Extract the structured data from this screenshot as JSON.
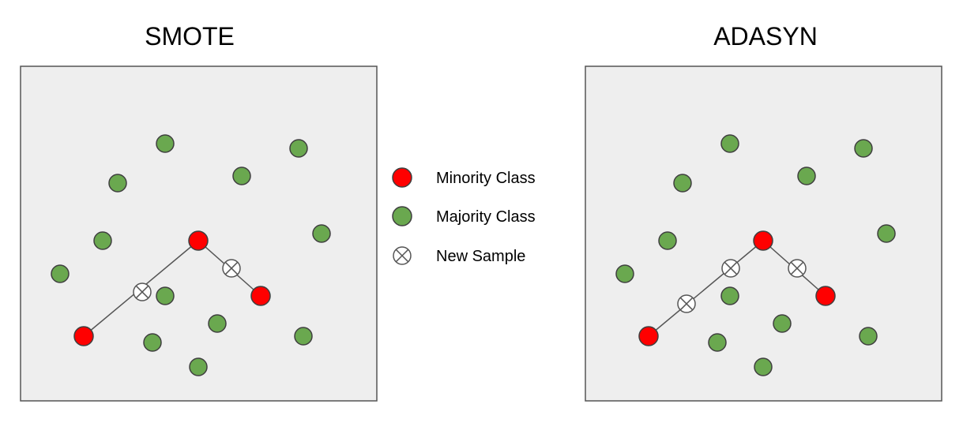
{
  "colors": {
    "minority": "#ff0000",
    "majority": "#6aa84f",
    "new_sample": "#ffffff",
    "panel": "#eeeeee"
  },
  "legend": {
    "items": [
      {
        "label": "Minority Class",
        "marker": "minority"
      },
      {
        "label": "Majority Class",
        "marker": "majority"
      },
      {
        "label": "New Sample",
        "marker": "new_sample"
      }
    ]
  },
  "panels": [
    {
      "id": "smote",
      "title": "SMOTE"
    },
    {
      "id": "adasyn",
      "title": "ADASYN"
    }
  ]
}
